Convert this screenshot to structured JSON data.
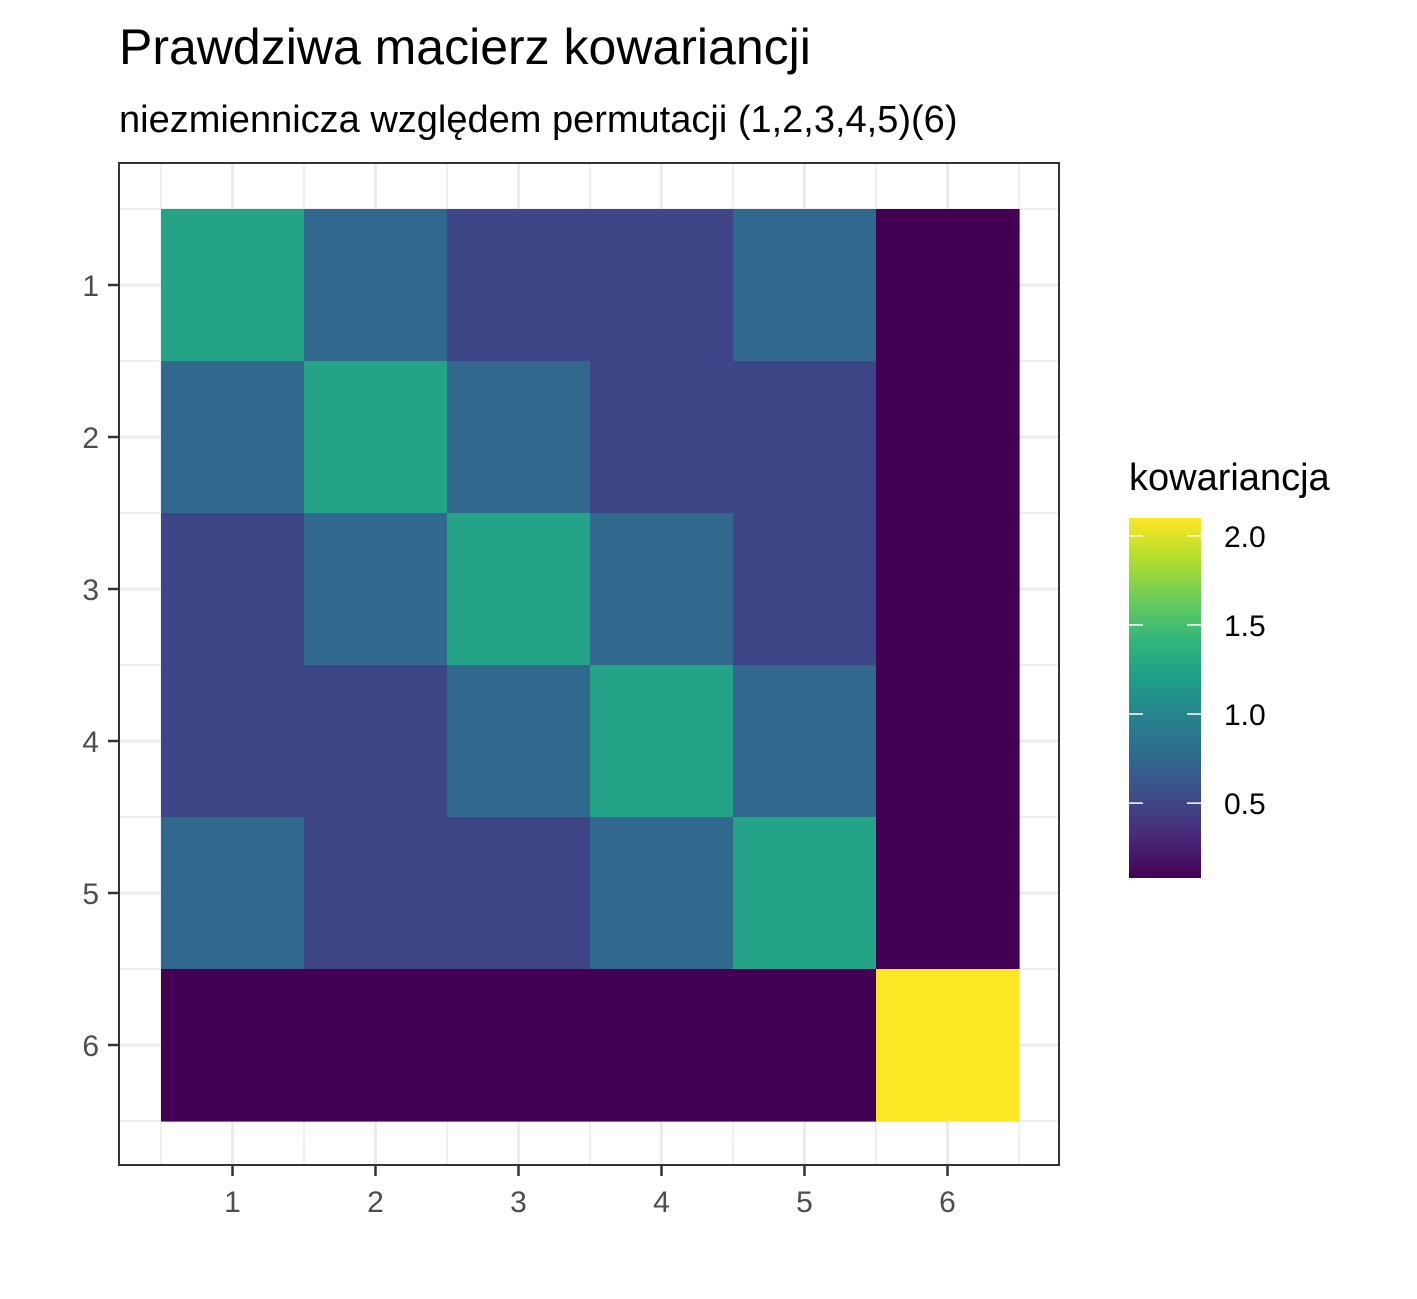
{
  "chart_data": {
    "type": "heatmap",
    "title": "Prawdziwa macierz kowariancji",
    "subtitle": "niezmiennicza względem permutacji (1,2,3,4,5)(6)",
    "x_categories": [
      "1",
      "2",
      "3",
      "4",
      "5",
      "6"
    ],
    "y_categories": [
      "1",
      "2",
      "3",
      "4",
      "5",
      "6"
    ],
    "values": [
      [
        1.25,
        0.75,
        0.5,
        0.5,
        0.75,
        0.08
      ],
      [
        0.75,
        1.25,
        0.75,
        0.5,
        0.5,
        0.08
      ],
      [
        0.5,
        0.75,
        1.25,
        0.75,
        0.5,
        0.08
      ],
      [
        0.5,
        0.5,
        0.75,
        1.25,
        0.75,
        0.08
      ],
      [
        0.75,
        0.5,
        0.5,
        0.75,
        1.25,
        0.08
      ],
      [
        0.08,
        0.08,
        0.08,
        0.08,
        0.08,
        2.1
      ]
    ],
    "legend": {
      "title": "kowariancja",
      "position": "right",
      "breaks": [
        0.5,
        1.0,
        1.5,
        2.0
      ],
      "break_labels": [
        "0.5",
        "1.0",
        "1.5",
        "2.0"
      ],
      "range": [
        0.08,
        2.1
      ]
    },
    "colormap": "viridis",
    "colors": [
      "#440154",
      "#482878",
      "#3E4A89",
      "#31688E",
      "#26828E",
      "#1F9E89",
      "#35B779",
      "#6DCD59",
      "#B4DE2C",
      "#FDE725"
    ],
    "grid": true,
    "theme": "bw"
  }
}
